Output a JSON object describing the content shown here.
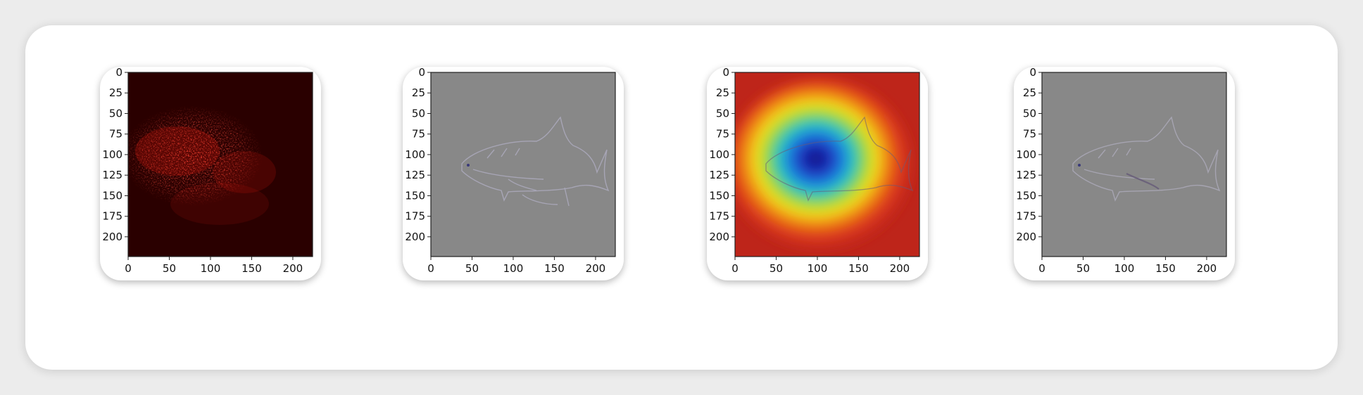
{
  "figure": {
    "panels": [
      {
        "id": "saliency-map",
        "colormap": "hot",
        "xticks": [
          "0",
          "50",
          "100",
          "150",
          "200"
        ],
        "yticks": [
          "0",
          "25",
          "50",
          "75",
          "100",
          "125",
          "150",
          "175",
          "200"
        ]
      },
      {
        "id": "guided-backprop",
        "colormap": "gray",
        "xticks": [
          "0",
          "50",
          "100",
          "150",
          "200"
        ],
        "yticks": [
          "0",
          "25",
          "50",
          "75",
          "100",
          "125",
          "150",
          "175",
          "200"
        ]
      },
      {
        "id": "grad-cam-overlay",
        "colormap": "jet",
        "xticks": [
          "0",
          "50",
          "100",
          "150",
          "200"
        ],
        "yticks": [
          "0",
          "25",
          "50",
          "75",
          "100",
          "125",
          "150",
          "175",
          "200"
        ]
      },
      {
        "id": "guided-grad-cam",
        "colormap": "gray",
        "xticks": [
          "0",
          "50",
          "100",
          "150",
          "200"
        ],
        "yticks": [
          "0",
          "25",
          "50",
          "75",
          "100",
          "125",
          "150",
          "175",
          "200"
        ]
      }
    ],
    "colors": {
      "background": "#ececec",
      "card": "#ffffff",
      "saliency_dark": "#1a0000",
      "saliency_hot": "#ff1a0f",
      "gray_field": "#888888",
      "jet_red": "#c8281c",
      "jet_blue": "#1b2ab8"
    },
    "subject": "shark"
  }
}
